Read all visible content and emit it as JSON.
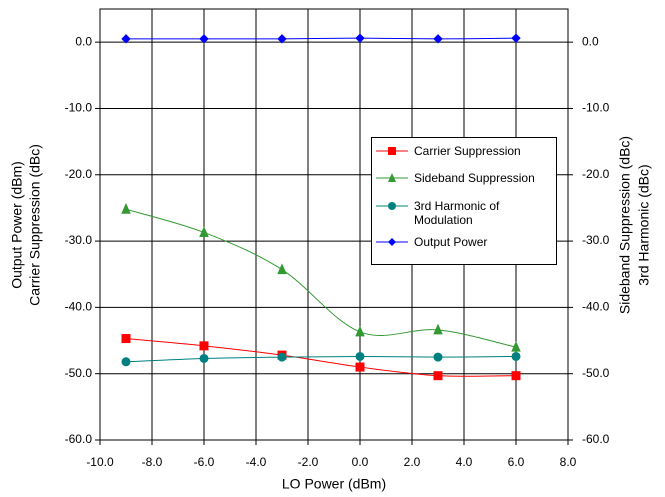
{
  "chart_data": {
    "type": "line",
    "x_label": "LO Power (dBm)",
    "y_label": [
      "Output Power (dBm)",
      "Carrier Suppression (dBc)"
    ],
    "y2_label": [
      "Sideband Suppression (dBc)",
      "3rd Harmonic (dBc)"
    ],
    "x": [
      -9,
      -6,
      -3,
      0,
      3,
      6
    ],
    "series": [
      {
        "name": "Carrier Suppression",
        "color": "#ff0000",
        "marker": "square",
        "values": [
          -44.7,
          -45.8,
          -47.2,
          -49.0,
          -50.3,
          -50.3
        ]
      },
      {
        "name": "Sideband Suppression",
        "color": "#339933",
        "marker": "triangle",
        "values": [
          -25.2,
          -28.7,
          -34.3,
          -43.7,
          -43.4,
          -46.0
        ]
      },
      {
        "name": "3rd Harmonic of Modulation",
        "color": "#008080",
        "marker": "circle",
        "values": [
          -48.2,
          -47.7,
          -47.5,
          -47.4,
          -47.5,
          -47.4
        ]
      },
      {
        "name": "Output Power",
        "color": "#0000ff",
        "marker": "diamond",
        "values": [
          0.5,
          0.5,
          0.5,
          0.6,
          0.5,
          0.6
        ]
      }
    ],
    "xlim": [
      -10,
      8
    ],
    "xticks": [
      {
        "value": -10,
        "label": "-10.0"
      },
      {
        "value": -8,
        "label": "-8.0"
      },
      {
        "value": -6,
        "label": "-6.0"
      },
      {
        "value": -4,
        "label": "-4.0"
      },
      {
        "value": -2,
        "label": "-2.0"
      },
      {
        "value": 0,
        "label": "0.0"
      },
      {
        "value": 2,
        "label": "2.0"
      },
      {
        "value": 4,
        "label": "4.0"
      },
      {
        "value": 6,
        "label": "6.0"
      },
      {
        "value": 8,
        "label": "8.0"
      }
    ],
    "ylim": [
      -60,
      5
    ],
    "yticks": [
      {
        "value": 0,
        "label": "0.0"
      },
      {
        "value": -10,
        "label": "-10.0"
      },
      {
        "value": -20,
        "label": "-20.0"
      },
      {
        "value": -30,
        "label": "-30.0"
      },
      {
        "value": -40,
        "label": "-40.0"
      },
      {
        "value": -50,
        "label": "-50.0"
      },
      {
        "value": -60,
        "label": "-60.0"
      }
    ],
    "y2lim": [
      -60,
      5
    ],
    "y2ticks": [
      {
        "value": 0,
        "label": "0.0"
      },
      {
        "value": -10,
        "label": "-10.0"
      },
      {
        "value": -20,
        "label": "-20.0"
      },
      {
        "value": -30,
        "label": "-30.0"
      },
      {
        "value": -40,
        "label": "-40.0"
      },
      {
        "value": -50,
        "label": "-50.0"
      },
      {
        "value": -60,
        "label": "-60.0"
      }
    ],
    "grid": true
  }
}
